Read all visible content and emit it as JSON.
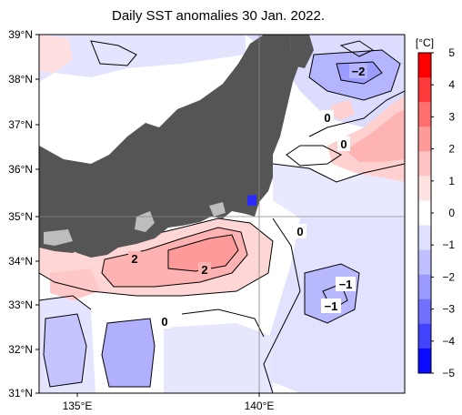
{
  "title": "Daily SST anomalies 30 Jan. 2022.",
  "map": {
    "lat_labels": [
      "39°N",
      "38°N",
      "37°N",
      "36°N",
      "35°N",
      "34°N",
      "33°N",
      "32°N",
      "31°N"
    ],
    "lon_labels": [
      "135°E",
      "140°E"
    ],
    "contour_labels": [
      "−2",
      "0",
      "0",
      "0",
      "−1",
      "−1",
      "2",
      "2",
      "0"
    ]
  },
  "colorbar": {
    "unit": "[°C]",
    "ticks": [
      "5",
      "4",
      "3",
      "2",
      "1",
      "0",
      "−1",
      "−2",
      "−3",
      "−4",
      "−5"
    ],
    "colors": [
      "#ff0000",
      "#ff3a3a",
      "#ff6f6f",
      "#ff9a9a",
      "#ffc4c4",
      "#ffe3e3",
      "#ffffff",
      "#e0e0ff",
      "#c0c0ff",
      "#9a9aff",
      "#7070ff",
      "#4242ff",
      "#0a0aff"
    ]
  }
}
